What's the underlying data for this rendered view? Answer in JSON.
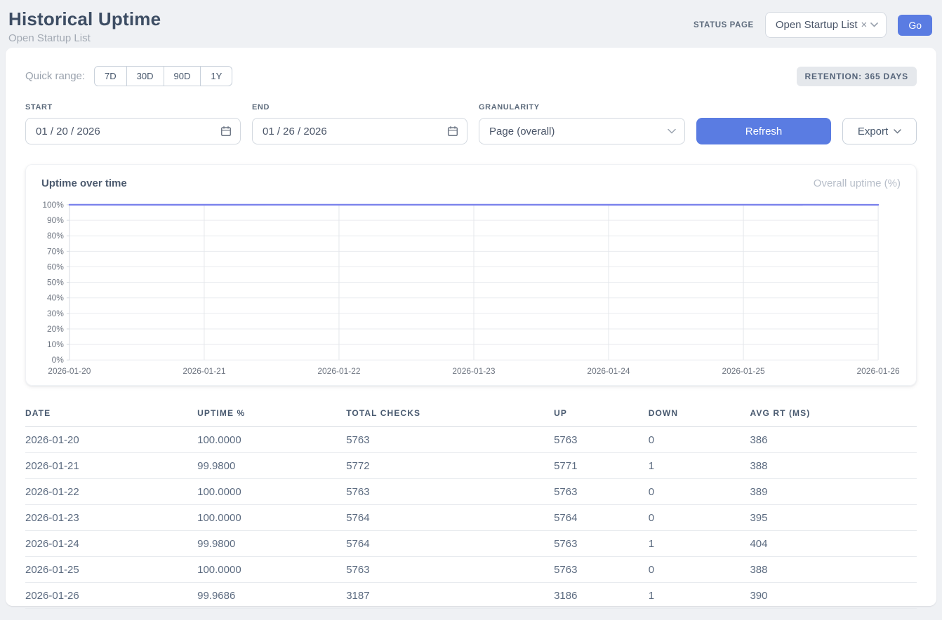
{
  "header": {
    "title": "Historical Uptime",
    "subtitle": "Open Startup List",
    "status_page_label": "STATUS PAGE",
    "status_page_value": "Open Startup List",
    "clear_icon": "×",
    "go_label": "Go"
  },
  "controls": {
    "quick_range_label": "Quick range:",
    "quick_ranges": [
      "7D",
      "30D",
      "90D",
      "1Y"
    ],
    "retention_badge": "RETENTION: 365 DAYS",
    "start_label": "START",
    "start_value": "01 / 20 / 2026",
    "end_label": "END",
    "end_value": "01 / 26 / 2026",
    "granularity_label": "GRANULARITY",
    "granularity_value": "Page (overall)",
    "refresh_label": "Refresh",
    "export_label": "Export"
  },
  "chart_data": {
    "type": "line",
    "title": "Uptime over time",
    "x": [
      "2026-01-20",
      "2026-01-21",
      "2026-01-22",
      "2026-01-23",
      "2026-01-24",
      "2026-01-25",
      "2026-01-26"
    ],
    "series": [
      {
        "name": "Overall uptime (%)",
        "values": [
          100.0,
          99.98,
          100.0,
          100.0,
          99.98,
          100.0,
          99.9686
        ]
      }
    ],
    "ylabel": "",
    "xlabel": "",
    "ylim": [
      0,
      100
    ],
    "yticks": [
      0,
      10,
      20,
      30,
      40,
      50,
      60,
      70,
      80,
      90,
      100
    ],
    "ytick_suffix": "%",
    "grid": true,
    "legend_position": "top-right",
    "line_color": "#7b82ec"
  },
  "table": {
    "columns": [
      "DATE",
      "UPTIME %",
      "TOTAL CHECKS",
      "UP",
      "DOWN",
      "AVG RT (MS)"
    ],
    "rows": [
      [
        "2026-01-20",
        "100.0000",
        "5763",
        "5763",
        "0",
        "386"
      ],
      [
        "2026-01-21",
        "99.9800",
        "5772",
        "5771",
        "1",
        "388"
      ],
      [
        "2026-01-22",
        "100.0000",
        "5763",
        "5763",
        "0",
        "389"
      ],
      [
        "2026-01-23",
        "100.0000",
        "5764",
        "5764",
        "0",
        "395"
      ],
      [
        "2026-01-24",
        "99.9800",
        "5764",
        "5763",
        "1",
        "404"
      ],
      [
        "2026-01-25",
        "100.0000",
        "5763",
        "5763",
        "0",
        "388"
      ],
      [
        "2026-01-26",
        "99.9686",
        "3187",
        "3186",
        "1",
        "390"
      ]
    ]
  },
  "colors": {
    "accent_blue": "#5a7ce2",
    "line_indigo": "#7b82ec",
    "page_bg": "#eff1f4"
  }
}
